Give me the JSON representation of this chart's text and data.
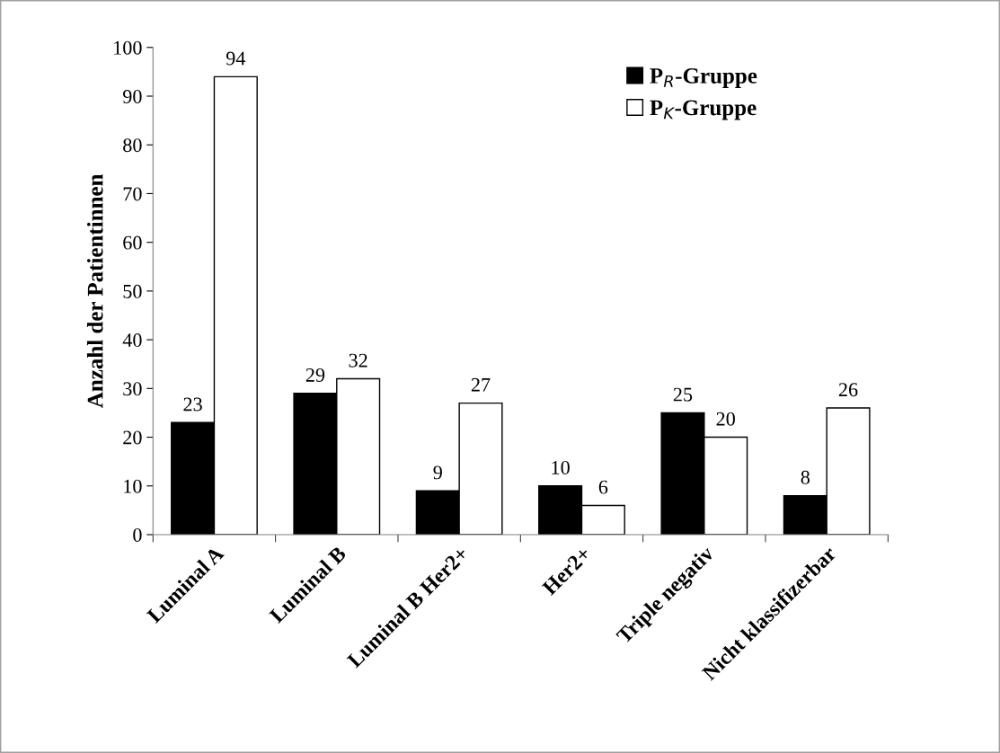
{
  "chart_data": {
    "type": "bar",
    "ylabel": "Anzahl der Patientinnen",
    "categories": [
      "Luminal A",
      "Luminal B",
      "Luminal B Her2+",
      "Her2+",
      "Triple negativ",
      "Nicht klassifizerbar"
    ],
    "series": [
      {
        "name": "P$_{R}$-Gruppe",
        "color": "#000000",
        "values": [
          23,
          29,
          9,
          10,
          25,
          8
        ]
      },
      {
        "name": "P$_{K}$-Gruppe",
        "color": "#ffffff",
        "values": [
          94,
          32,
          27,
          6,
          20,
          26
        ]
      }
    ],
    "ylim": [
      0,
      100
    ],
    "yticks": [
      0,
      10,
      20,
      30,
      40,
      50,
      60,
      70,
      80,
      90,
      100
    ],
    "data_labels": true,
    "grid": false,
    "legend": "top right"
  }
}
